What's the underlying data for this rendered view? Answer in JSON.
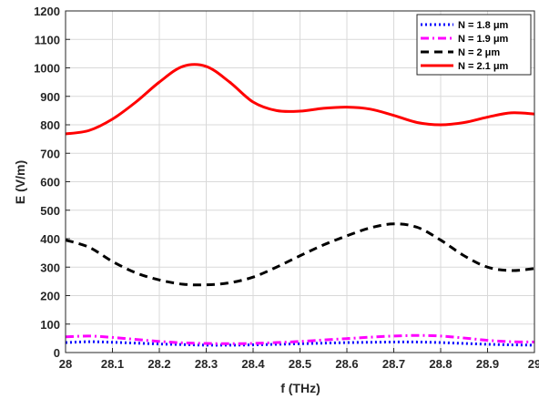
{
  "chart_data": {
    "type": "line",
    "xlabel": "f (THz)",
    "ylabel": "E (V/m)",
    "xlim": [
      28,
      29
    ],
    "ylim": [
      0,
      1200
    ],
    "xticks": [
      28,
      28.1,
      28.2,
      28.3,
      28.4,
      28.5,
      28.6,
      28.7,
      28.8,
      28.9,
      29
    ],
    "xtick_labels": [
      "28",
      "28.1",
      "28.2",
      "28.3",
      "28.4",
      "28.5",
      "28.6",
      "28.7",
      "28.8",
      "28.9",
      "29"
    ],
    "yticks": [
      0,
      100,
      200,
      300,
      400,
      500,
      600,
      700,
      800,
      900,
      1000,
      1100,
      1200
    ],
    "ytick_labels": [
      "0",
      "100",
      "200",
      "300",
      "400",
      "500",
      "600",
      "700",
      "800",
      "900",
      "1000",
      "1100",
      "1200"
    ],
    "grid": true,
    "legend_position": "top-right",
    "series": [
      {
        "name": "N = 1.8 μm",
        "color": "#0000ff",
        "dash": "dotted",
        "x": [
          28,
          28.05,
          28.1,
          28.15,
          28.2,
          28.25,
          28.3,
          28.35,
          28.4,
          28.45,
          28.5,
          28.55,
          28.6,
          28.65,
          28.7,
          28.75,
          28.8,
          28.85,
          28.9,
          28.95,
          29
        ],
        "y": [
          35,
          38,
          36,
          33,
          30,
          28,
          26,
          26,
          27,
          29,
          31,
          33,
          35,
          36,
          37,
          37,
          35,
          32,
          29,
          27,
          26
        ]
      },
      {
        "name": "N = 1.9 μm",
        "color": "#ff00ff",
        "dash": "dashdot",
        "x": [
          28,
          28.05,
          28.1,
          28.15,
          28.2,
          28.25,
          28.3,
          28.35,
          28.4,
          28.45,
          28.5,
          28.55,
          28.6,
          28.65,
          28.7,
          28.75,
          28.8,
          28.85,
          28.9,
          28.95,
          29
        ],
        "y": [
          55,
          58,
          53,
          46,
          39,
          34,
          32,
          31,
          32,
          35,
          39,
          44,
          49,
          54,
          58,
          60,
          58,
          51,
          43,
          38,
          37
        ]
      },
      {
        "name": "N = 2 μm",
        "color": "#000000",
        "dash": "dashed",
        "x": [
          28,
          28.05,
          28.1,
          28.15,
          28.2,
          28.25,
          28.3,
          28.35,
          28.4,
          28.45,
          28.5,
          28.55,
          28.6,
          28.65,
          28.7,
          28.75,
          28.8,
          28.85,
          28.9,
          28.95,
          29
        ],
        "y": [
          395,
          370,
          320,
          280,
          255,
          240,
          238,
          245,
          265,
          300,
          340,
          378,
          410,
          438,
          452,
          440,
          395,
          340,
          300,
          288,
          295
        ]
      },
      {
        "name": "N = 2.1 μm",
        "color": "#ff0000",
        "dash": "solid",
        "x": [
          28,
          28.05,
          28.1,
          28.15,
          28.2,
          28.25,
          28.3,
          28.35,
          28.4,
          28.45,
          28.5,
          28.55,
          28.6,
          28.65,
          28.7,
          28.75,
          28.8,
          28.85,
          28.9,
          28.95,
          29
        ],
        "y": [
          768,
          780,
          820,
          880,
          950,
          1005,
          1005,
          950,
          880,
          850,
          848,
          858,
          862,
          855,
          833,
          808,
          800,
          808,
          827,
          842,
          838
        ]
      }
    ]
  }
}
